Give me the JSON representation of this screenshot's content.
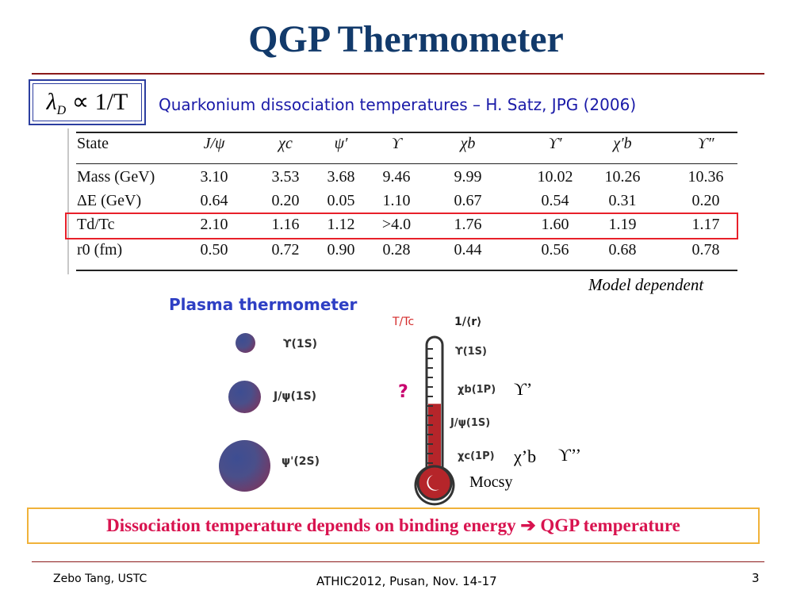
{
  "slide": {
    "title": "QGP Thermometer",
    "formula": {
      "lambda": "λ",
      "lambda_sub": "D",
      "rest": " ∝ 1/T"
    },
    "reference": "Quarkonium dissociation temperatures – H. Satz, JPG (2006)",
    "table": {
      "header": [
        "State",
        "J/ψ",
        "χc",
        "ψ′",
        "ϒ",
        "χb",
        "ϒ′",
        "χ′b",
        "ϒ″"
      ],
      "rows": [
        {
          "label": "Mass (GeV)",
          "values": [
            "3.10",
            "3.53",
            "3.68",
            "9.46",
            "9.99",
            "10.02",
            "10.26",
            "10.36"
          ]
        },
        {
          "label": "ΔE (GeV)",
          "values": [
            "0.64",
            "0.20",
            "0.05",
            "1.10",
            "0.67",
            "0.54",
            "0.31",
            "0.20"
          ]
        },
        {
          "label": "Td/Tc",
          "values": [
            "2.10",
            "1.16",
            "1.12",
            ">4.0",
            "1.76",
            "1.60",
            "1.19",
            "1.17"
          ]
        },
        {
          "label": "r0 (fm)",
          "values": [
            "0.50",
            "0.72",
            "0.90",
            "0.28",
            "0.44",
            "0.56",
            "0.68",
            "0.78"
          ]
        }
      ]
    },
    "model_dependent": "Model dependent",
    "plasma_label": "Plasma thermometer",
    "balls": [
      {
        "label": "ϒ(1S)"
      },
      {
        "label": "J/ψ(1S)"
      },
      {
        "label": "ψ'(2S)"
      }
    ],
    "thermometer": {
      "tc_label": "T/Tc",
      "r_label": "1/⟨r⟩",
      "levels": [
        "ϒ(1S)",
        "χb(1P)",
        "J/ψ(1S)",
        "χc(1P)"
      ],
      "fill_fraction": 0.55,
      "question": "?",
      "extras": {
        "upsilon_prime": "ϒ’",
        "chi_b_prime": "χ’b",
        "upsilon_double": "ϒ’’"
      },
      "mocsy": "Mocsy"
    },
    "conclusion": "Dissociation temperature depends on binding energy ➔ QGP temperature",
    "footer": {
      "left": "Zebo Tang, USTC",
      "center": "ATHIC2012, Pusan, Nov. 14-17",
      "page": "3"
    },
    "colors": {
      "title": "#123a6b",
      "accent_red": "#e8202a",
      "conclusion_text": "#d8134f",
      "conclusion_border": "#f0b23a",
      "reference": "#1a1aa8",
      "thermometer_fill": "#b5252a"
    }
  }
}
